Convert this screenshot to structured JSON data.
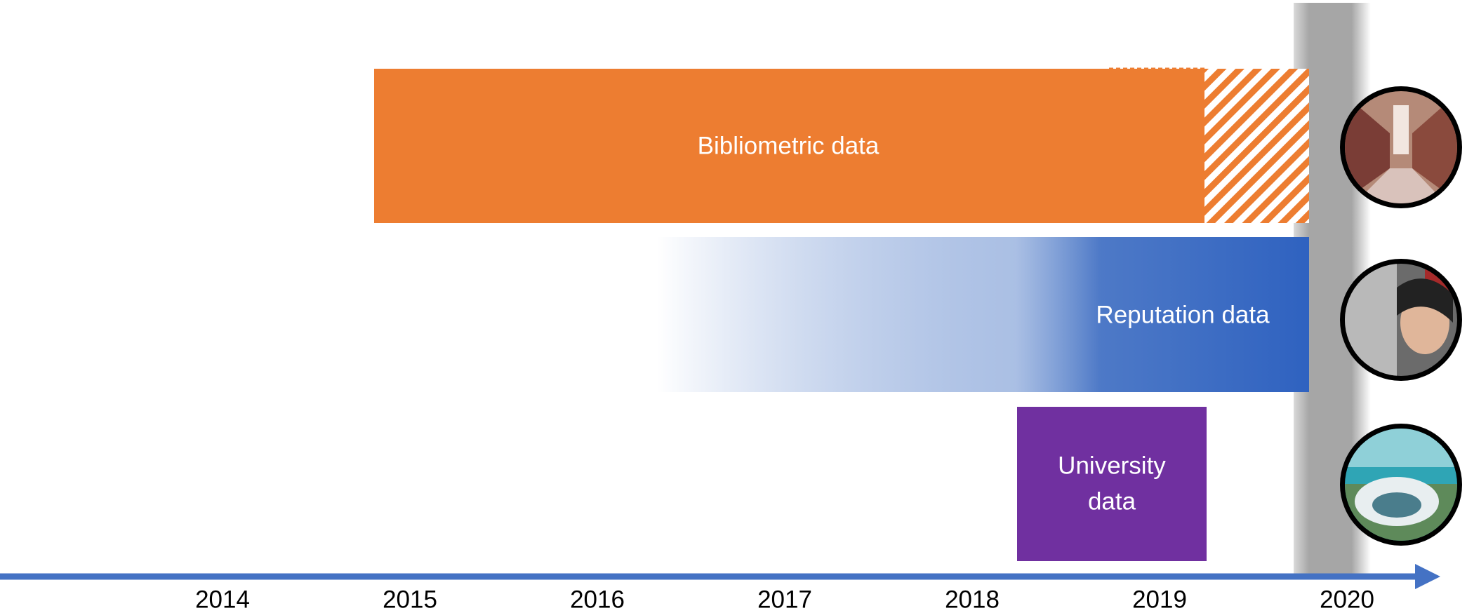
{
  "timeline": {
    "years": [
      "2014",
      "2015",
      "2016",
      "2017",
      "2018",
      "2019",
      "2020"
    ],
    "bars": [
      {
        "label": "Bibliometric data"
      },
      {
        "label": "Reputation data"
      },
      {
        "lines": [
          "University",
          "data"
        ]
      }
    ]
  }
}
